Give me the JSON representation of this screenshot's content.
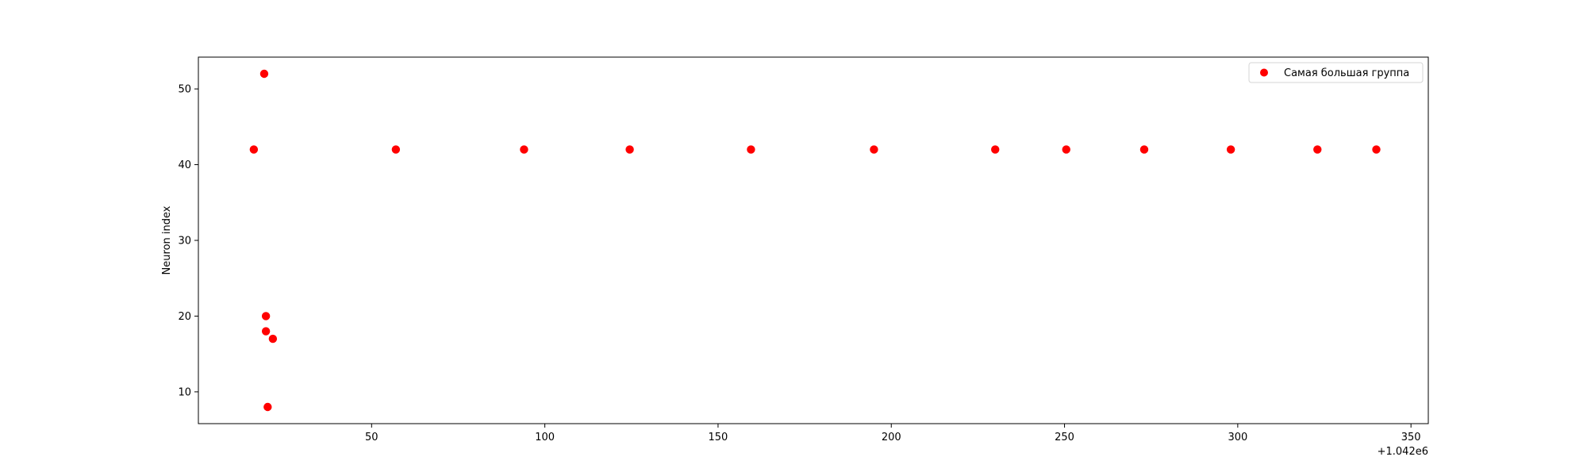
{
  "chart_data": {
    "type": "scatter",
    "title": "",
    "xlabel": "",
    "ylabel": "Neuron index",
    "x_offset_text": "+1.042e6",
    "xlim": [
      1042000,
      1042355
    ],
    "ylim": [
      5.8,
      54.2
    ],
    "x_ticks": [
      1042050,
      1042100,
      1042150,
      1042200,
      1042250,
      1042300,
      1042350
    ],
    "x_tick_labels": [
      "50",
      "100",
      "150",
      "200",
      "250",
      "300",
      "350"
    ],
    "y_ticks": [
      10,
      20,
      30,
      40,
      50
    ],
    "y_tick_labels": [
      "10",
      "20",
      "30",
      "40",
      "50"
    ],
    "grid": false,
    "legend_position": "top-right",
    "series": [
      {
        "name": "Самая большая группа",
        "color": "#ff0000",
        "points": [
          [
            1042016,
            42
          ],
          [
            1042019,
            52
          ],
          [
            1042019.5,
            20
          ],
          [
            1042019.5,
            18
          ],
          [
            1042020,
            8
          ],
          [
            1042021.5,
            17
          ],
          [
            1042057,
            42
          ],
          [
            1042094,
            42
          ],
          [
            1042124.5,
            42
          ],
          [
            1042159.5,
            42
          ],
          [
            1042195,
            42
          ],
          [
            1042230,
            42
          ],
          [
            1042250.5,
            42
          ],
          [
            1042273,
            42
          ],
          [
            1042298,
            42
          ],
          [
            1042323,
            42
          ],
          [
            1042340,
            42
          ]
        ]
      }
    ]
  }
}
